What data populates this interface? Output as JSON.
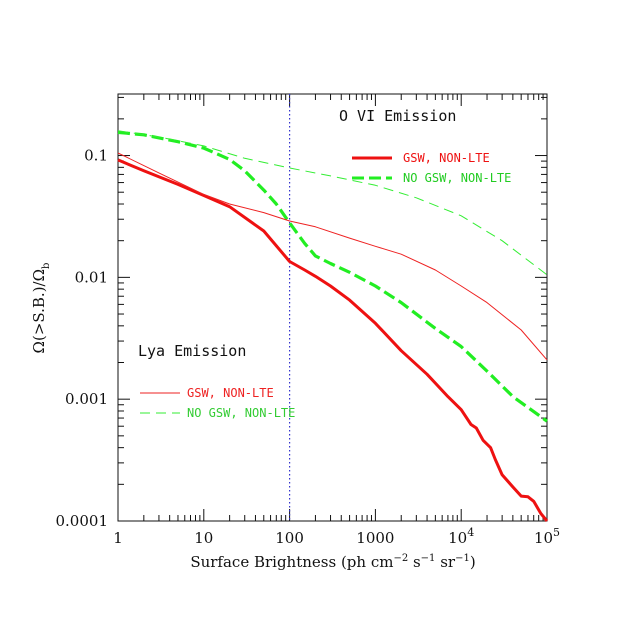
{
  "chart_data": {
    "type": "line",
    "title": "",
    "xlabel": "Surface Brightness (ph cm",
    "xlabel_parts": {
      "base": "Surface Brightness (ph cm",
      "exp1": "−2",
      "mid1": " s",
      "exp2": "−1",
      "mid2": " sr",
      "exp3": "−1",
      "end": ")"
    },
    "ylabel_parts": {
      "base": "Ω(>S.B.)/Ω",
      "sub": "b"
    },
    "xscale": "log",
    "yscale": "log",
    "xlim": [
      1,
      100000
    ],
    "ylim": [
      0.0001,
      0.32
    ],
    "x_ticks": [
      {
        "value": 1,
        "label": "1",
        "exp": ""
      },
      {
        "value": 10,
        "label": "10",
        "exp": ""
      },
      {
        "value": 100,
        "label": "100",
        "exp": ""
      },
      {
        "value": 1000,
        "label": "1000",
        "exp": ""
      },
      {
        "value": 10000,
        "label": "10",
        "exp": "4"
      },
      {
        "value": 100000,
        "label": "10",
        "exp": "5"
      }
    ],
    "y_ticks": [
      {
        "value": 0.1,
        "label": "0.1"
      },
      {
        "value": 0.01,
        "label": "0.01"
      },
      {
        "value": 0.001,
        "label": "0.001"
      },
      {
        "value": 0.0001,
        "label": "0.0001"
      }
    ],
    "reference_line": {
      "x": 100,
      "color": "#3333cc",
      "style": "dotted"
    },
    "groups": [
      {
        "title": "O VI Emission",
        "position": "top-right"
      },
      {
        "title": "Lya Emission",
        "position": "middle-left"
      }
    ],
    "series": [
      {
        "name": "GSW, NON-LTE",
        "group": "O VI Emission",
        "color": "#ee1111",
        "style": "solid-thick",
        "x": [
          1,
          2,
          5,
          10,
          20,
          50,
          100,
          150,
          200,
          300,
          500,
          1000,
          2000,
          4000,
          7000,
          10000,
          13000,
          15000,
          18000,
          22000,
          25000,
          30000,
          40000,
          50000,
          60000,
          70000,
          85000,
          100000
        ],
        "y": [
          0.092,
          0.075,
          0.058,
          0.047,
          0.038,
          0.024,
          0.0135,
          0.0115,
          0.0102,
          0.0085,
          0.0065,
          0.0042,
          0.0025,
          0.0016,
          0.00105,
          0.00082,
          0.00062,
          0.00058,
          0.00046,
          0.0004,
          0.00032,
          0.00024,
          0.00019,
          0.00016,
          0.000158,
          0.000145,
          0.000115,
          0.0001
        ]
      },
      {
        "name": "NO GSW, NON-LTE",
        "group": "O VI Emission",
        "color": "#22ee22",
        "style": "dashed-thick",
        "x": [
          1,
          2,
          5,
          10,
          20,
          30,
          50,
          70,
          100,
          150,
          200,
          300,
          500,
          1000,
          2000,
          5000,
          10000,
          20000,
          40000,
          100000
        ],
        "y": [
          0.155,
          0.148,
          0.13,
          0.115,
          0.093,
          0.075,
          0.052,
          0.04,
          0.028,
          0.019,
          0.015,
          0.013,
          0.011,
          0.0085,
          0.0062,
          0.0038,
          0.0027,
          0.0017,
          0.00105,
          0.00066
        ]
      },
      {
        "name": "GSW, NON-LTE",
        "group": "Lya Emission",
        "color": "#ee2222",
        "style": "solid-thin",
        "x": [
          1,
          3,
          10,
          20,
          50,
          100,
          200,
          500,
          1000,
          2000,
          5000,
          10000,
          20000,
          50000,
          100000
        ],
        "y": [
          0.105,
          0.072,
          0.048,
          0.04,
          0.034,
          0.029,
          0.026,
          0.021,
          0.018,
          0.0155,
          0.0115,
          0.0085,
          0.0062,
          0.0037,
          0.0021
        ]
      },
      {
        "name": "NO GSW, NON-LTE",
        "group": "Lya Emission",
        "color": "#33ee33",
        "style": "dashed-thin",
        "x": [
          1,
          3,
          10,
          30,
          100,
          300,
          1000,
          3000,
          10000,
          30000,
          100000
        ],
        "y": [
          0.16,
          0.142,
          0.12,
          0.095,
          0.079,
          0.068,
          0.057,
          0.045,
          0.032,
          0.02,
          0.0105
        ]
      }
    ],
    "grid": false
  }
}
